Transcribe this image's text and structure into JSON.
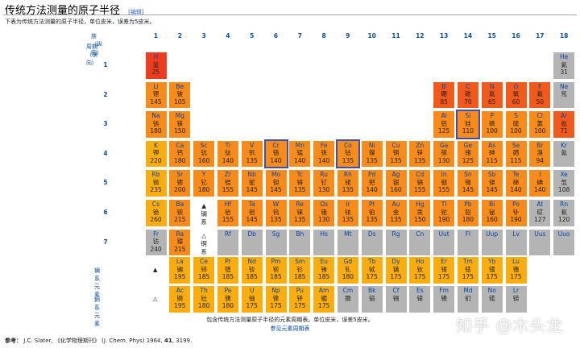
{
  "header": {
    "title": "传统方法测量的原子半径",
    "edit_link": "[编辑]",
    "intro": "下表为传统方法测量的原子半径，单位皮米，误差为5皮米。"
  },
  "axes": {
    "group_label": "族（纵向）",
    "period_label": "周期（横向）",
    "groups": [
      "1",
      "2",
      "3",
      "4",
      "5",
      "6",
      "7",
      "8",
      "9",
      "10",
      "11",
      "12",
      "13",
      "14",
      "15",
      "16",
      "17",
      "18"
    ],
    "periods": [
      "1",
      "2",
      "3",
      "4",
      "5",
      "6",
      "7"
    ],
    "lanthanide_label": "镧系元素",
    "actinide_label": "锕系元素",
    "lanthanide_marker": "▲",
    "actinide_marker": "△"
  },
  "colors": {
    "red": "#f03c1e",
    "red_orange": "#f2591c",
    "orange": "#f98b1a",
    "gold": "#fbad0e",
    "grey": "#b4b4b4",
    "highlight": "#3b4fb8"
  },
  "placeholders": [
    {
      "g": 3,
      "p": 6,
      "t1": "▲",
      "t2": "镧",
      "t3": "系"
    },
    {
      "g": 3,
      "p": 7,
      "t1": "△",
      "t2": "锕",
      "t3": "系"
    }
  ],
  "elements": [
    {
      "s": "H",
      "zh": "氢",
      "r": "25",
      "c": "red",
      "g": 1,
      "p": 1
    },
    {
      "s": "He",
      "zh": "氦",
      "r": "31",
      "c": "grey",
      "g": 18,
      "p": 1
    },
    {
      "s": "Li",
      "zh": "锂",
      "r": "145",
      "c": "orange",
      "g": 1,
      "p": 2
    },
    {
      "s": "Be",
      "zh": "铍",
      "r": "105",
      "c": "orange",
      "g": 2,
      "p": 2
    },
    {
      "s": "B",
      "zh": "硼",
      "r": "85",
      "c": "red_orange",
      "g": 13,
      "p": 2
    },
    {
      "s": "C",
      "zh": "碳",
      "r": "70",
      "c": "red_orange",
      "g": 14,
      "p": 2
    },
    {
      "s": "N",
      "zh": "氮",
      "r": "65",
      "c": "red_orange",
      "g": 15,
      "p": 2
    },
    {
      "s": "O",
      "zh": "氧",
      "r": "60",
      "c": "red_orange",
      "g": 16,
      "p": 2
    },
    {
      "s": "F",
      "zh": "氟",
      "r": "50",
      "c": "red_orange",
      "g": 17,
      "p": 2
    },
    {
      "s": "Ne",
      "zh": "氖",
      "r": "",
      "c": "grey",
      "g": 18,
      "p": 2
    },
    {
      "s": "Na",
      "zh": "钠",
      "r": "180",
      "c": "orange",
      "g": 1,
      "p": 3
    },
    {
      "s": "Mg",
      "zh": "镁",
      "r": "150",
      "c": "orange",
      "g": 2,
      "p": 3
    },
    {
      "s": "Al",
      "zh": "铝",
      "r": "125",
      "c": "orange",
      "g": 13,
      "p": 3
    },
    {
      "s": "Si",
      "zh": "硅",
      "r": "110",
      "c": "orange",
      "g": 14,
      "p": 3,
      "hl": true
    },
    {
      "s": "P",
      "zh": "磷",
      "r": "100",
      "c": "orange",
      "g": 15,
      "p": 3
    },
    {
      "s": "S",
      "zh": "硫",
      "r": "100",
      "c": "orange",
      "g": 16,
      "p": 3
    },
    {
      "s": "Cl",
      "zh": "氯",
      "r": "100",
      "c": "orange",
      "g": 17,
      "p": 3
    },
    {
      "s": "Ar",
      "zh": "氩",
      "r": "71",
      "c": "red_orange",
      "g": 18,
      "p": 3
    },
    {
      "s": "K",
      "zh": "钾",
      "r": "220",
      "c": "gold",
      "g": 1,
      "p": 4
    },
    {
      "s": "Ca",
      "zh": "钙",
      "r": "180",
      "c": "orange",
      "g": 2,
      "p": 4
    },
    {
      "s": "Sc",
      "zh": "钪",
      "r": "160",
      "c": "orange",
      "g": 3,
      "p": 4
    },
    {
      "s": "Ti",
      "zh": "钛",
      "r": "140",
      "c": "orange",
      "g": 4,
      "p": 4
    },
    {
      "s": "V",
      "zh": "钒",
      "r": "135",
      "c": "orange",
      "g": 5,
      "p": 4
    },
    {
      "s": "Cr",
      "zh": "铬",
      "r": "140",
      "c": "orange",
      "g": 6,
      "p": 4,
      "hl": true
    },
    {
      "s": "Mn",
      "zh": "锰",
      "r": "140",
      "c": "orange",
      "g": 7,
      "p": 4
    },
    {
      "s": "Fe",
      "zh": "铁",
      "r": "140",
      "c": "orange",
      "g": 8,
      "p": 4
    },
    {
      "s": "Co",
      "zh": "钴",
      "r": "135",
      "c": "orange",
      "g": 9,
      "p": 4,
      "hl": true
    },
    {
      "s": "Ni",
      "zh": "镍",
      "r": "135",
      "c": "orange",
      "g": 10,
      "p": 4
    },
    {
      "s": "Cu",
      "zh": "铜",
      "r": "135",
      "c": "orange",
      "g": 11,
      "p": 4
    },
    {
      "s": "Zn",
      "zh": "锌",
      "r": "135",
      "c": "orange",
      "g": 12,
      "p": 4
    },
    {
      "s": "Ga",
      "zh": "镓",
      "r": "130",
      "c": "orange",
      "g": 13,
      "p": 4
    },
    {
      "s": "Ge",
      "zh": "锗",
      "r": "125",
      "c": "orange",
      "g": 14,
      "p": 4
    },
    {
      "s": "As",
      "zh": "砷",
      "r": "115",
      "c": "orange",
      "g": 15,
      "p": 4
    },
    {
      "s": "Se",
      "zh": "硒",
      "r": "115",
      "c": "orange",
      "g": 16,
      "p": 4
    },
    {
      "s": "Br",
      "zh": "溴",
      "r": "94",
      "c": "orange",
      "g": 17,
      "p": 4
    },
    {
      "s": "Kr",
      "zh": "氪",
      "r": "",
      "c": "grey",
      "g": 18,
      "p": 4
    },
    {
      "s": "Rb",
      "zh": "铷",
      "r": "235",
      "c": "gold",
      "g": 1,
      "p": 5
    },
    {
      "s": "Sr",
      "zh": "锶",
      "r": "200",
      "c": "orange",
      "g": 2,
      "p": 5
    },
    {
      "s": "Y",
      "zh": "钇",
      "r": "180",
      "c": "orange",
      "g": 3,
      "p": 5
    },
    {
      "s": "Zr",
      "zh": "锆",
      "r": "155",
      "c": "orange",
      "g": 4,
      "p": 5
    },
    {
      "s": "Nb",
      "zh": "铌",
      "r": "145",
      "c": "orange",
      "g": 5,
      "p": 5
    },
    {
      "s": "Mo",
      "zh": "钼",
      "r": "145",
      "c": "orange",
      "g": 6,
      "p": 5
    },
    {
      "s": "Tc",
      "zh": "锝",
      "r": "135",
      "c": "orange",
      "g": 7,
      "p": 5
    },
    {
      "s": "Ru",
      "zh": "钌",
      "r": "130",
      "c": "orange",
      "g": 8,
      "p": 5
    },
    {
      "s": "Rh",
      "zh": "铑",
      "r": "135",
      "c": "orange",
      "g": 9,
      "p": 5
    },
    {
      "s": "Pd",
      "zh": "钯",
      "r": "140",
      "c": "orange",
      "g": 10,
      "p": 5
    },
    {
      "s": "Ag",
      "zh": "银",
      "r": "160",
      "c": "orange",
      "g": 11,
      "p": 5
    },
    {
      "s": "Cd",
      "zh": "镉",
      "r": "155",
      "c": "orange",
      "g": 12,
      "p": 5
    },
    {
      "s": "In",
      "zh": "铟",
      "r": "155",
      "c": "orange",
      "g": 13,
      "p": 5
    },
    {
      "s": "Sn",
      "zh": "锡",
      "r": "145",
      "c": "orange",
      "g": 14,
      "p": 5
    },
    {
      "s": "Sb",
      "zh": "锑",
      "r": "145",
      "c": "orange",
      "g": 15,
      "p": 5
    },
    {
      "s": "Te",
      "zh": "碲",
      "r": "140",
      "c": "orange",
      "g": 16,
      "p": 5
    },
    {
      "s": "I",
      "zh": "碘",
      "r": "140",
      "c": "orange",
      "g": 17,
      "p": 5
    },
    {
      "s": "Xe",
      "zh": "氙",
      "r": "108",
      "c": "grey",
      "g": 18,
      "p": 5
    },
    {
      "s": "Cs",
      "zh": "铯",
      "r": "260",
      "c": "gold",
      "g": 1,
      "p": 6
    },
    {
      "s": "Ba",
      "zh": "钡",
      "r": "215",
      "c": "orange",
      "g": 2,
      "p": 6
    },
    {
      "s": "Hf",
      "zh": "铪",
      "r": "155",
      "c": "orange",
      "g": 4,
      "p": 6
    },
    {
      "s": "Ta",
      "zh": "钽",
      "r": "145",
      "c": "orange",
      "g": 5,
      "p": 6
    },
    {
      "s": "W",
      "zh": "钨",
      "r": "135",
      "c": "orange",
      "g": 6,
      "p": 6
    },
    {
      "s": "Re",
      "zh": "铼",
      "r": "135",
      "c": "orange",
      "g": 7,
      "p": 6
    },
    {
      "s": "Os",
      "zh": "锇",
      "r": "130",
      "c": "orange",
      "g": 8,
      "p": 6
    },
    {
      "s": "Ir",
      "zh": "铱",
      "r": "135",
      "c": "orange",
      "g": 9,
      "p": 6
    },
    {
      "s": "Pt",
      "zh": "铂",
      "r": "135",
      "c": "orange",
      "g": 10,
      "p": 6
    },
    {
      "s": "Au",
      "zh": "金",
      "r": "135",
      "c": "orange",
      "g": 11,
      "p": 6
    },
    {
      "s": "Hg",
      "zh": "汞",
      "r": "150",
      "c": "orange",
      "g": 12,
      "p": 6
    },
    {
      "s": "Tl",
      "zh": "铊",
      "r": "190",
      "c": "orange",
      "g": 13,
      "p": 6
    },
    {
      "s": "Pb",
      "zh": "铅",
      "r": "180",
      "c": "orange",
      "g": 14,
      "p": 6
    },
    {
      "s": "Bi",
      "zh": "铋",
      "r": "160",
      "c": "orange",
      "g": 15,
      "p": 6
    },
    {
      "s": "Po",
      "zh": "钋",
      "r": "190",
      "c": "orange",
      "g": 16,
      "p": 6
    },
    {
      "s": "At",
      "zh": "砹",
      "r": "127",
      "c": "grey",
      "g": 17,
      "p": 6
    },
    {
      "s": "Rn",
      "zh": "氡",
      "r": "120",
      "c": "grey",
      "g": 18,
      "p": 6
    },
    {
      "s": "Fr",
      "zh": "钫",
      "r": "240",
      "c": "grey",
      "g": 1,
      "p": 7
    },
    {
      "s": "Ra",
      "zh": "镭",
      "r": "215",
      "c": "orange",
      "g": 2,
      "p": 7
    },
    {
      "s": "Rf",
      "zh": "",
      "r": "",
      "c": "grey",
      "g": 4,
      "p": 7
    },
    {
      "s": "Db",
      "zh": "",
      "r": "",
      "c": "grey",
      "g": 5,
      "p": 7
    },
    {
      "s": "Sg",
      "zh": "",
      "r": "",
      "c": "grey",
      "g": 6,
      "p": 7
    },
    {
      "s": "Bh",
      "zh": "",
      "r": "",
      "c": "grey",
      "g": 7,
      "p": 7
    },
    {
      "s": "Hs",
      "zh": "",
      "r": "",
      "c": "grey",
      "g": 8,
      "p": 7
    },
    {
      "s": "Mt",
      "zh": "",
      "r": "",
      "c": "grey",
      "g": 9,
      "p": 7
    },
    {
      "s": "Ds",
      "zh": "",
      "r": "",
      "c": "grey",
      "g": 10,
      "p": 7
    },
    {
      "s": "Rg",
      "zh": "",
      "r": "",
      "c": "grey",
      "g": 11,
      "p": 7
    },
    {
      "s": "Cn",
      "zh": "",
      "r": "",
      "c": "grey",
      "g": 12,
      "p": 7
    },
    {
      "s": "Uut",
      "zh": "",
      "r": "",
      "c": "grey",
      "g": 13,
      "p": 7
    },
    {
      "s": "Fl",
      "zh": "",
      "r": "",
      "c": "grey",
      "g": 14,
      "p": 7
    },
    {
      "s": "Uup",
      "zh": "",
      "r": "",
      "c": "grey",
      "g": 15,
      "p": 7
    },
    {
      "s": "Lv",
      "zh": "",
      "r": "",
      "c": "grey",
      "g": 16,
      "p": 7
    },
    {
      "s": "Uus",
      "zh": "",
      "r": "",
      "c": "grey",
      "g": 17,
      "p": 7
    },
    {
      "s": "Uuo",
      "zh": "",
      "r": "",
      "c": "grey",
      "g": 18,
      "p": 7
    }
  ],
  "lanthanides": [
    {
      "s": "La",
      "zh": "镧",
      "r": "195",
      "c": "gold"
    },
    {
      "s": "Ce",
      "zh": "铈",
      "r": "185",
      "c": "gold"
    },
    {
      "s": "Pr",
      "zh": "镨",
      "r": "185",
      "c": "gold"
    },
    {
      "s": "Nd",
      "zh": "钕",
      "r": "185",
      "c": "gold"
    },
    {
      "s": "Pm",
      "zh": "钷",
      "r": "185",
      "c": "gold"
    },
    {
      "s": "Sm",
      "zh": "钐",
      "r": "185",
      "c": "gold"
    },
    {
      "s": "Eu",
      "zh": "铕",
      "r": "185",
      "c": "gold"
    },
    {
      "s": "Gd",
      "zh": "钆",
      "r": "180",
      "c": "gold"
    },
    {
      "s": "Tb",
      "zh": "铽",
      "r": "175",
      "c": "gold"
    },
    {
      "s": "Dy",
      "zh": "镝",
      "r": "175",
      "c": "gold"
    },
    {
      "s": "Ho",
      "zh": "钬",
      "r": "175",
      "c": "gold"
    },
    {
      "s": "Er",
      "zh": "铒",
      "r": "175",
      "c": "gold"
    },
    {
      "s": "Tm",
      "zh": "铥",
      "r": "175",
      "c": "gold"
    },
    {
      "s": "Yb",
      "zh": "镱",
      "r": "175",
      "c": "gold"
    },
    {
      "s": "Lu",
      "zh": "镥",
      "r": "175",
      "c": "gold"
    }
  ],
  "actinides": [
    {
      "s": "Ac",
      "zh": "锕",
      "r": "195",
      "c": "gold"
    },
    {
      "s": "Th",
      "zh": "钍",
      "r": "180",
      "c": "gold"
    },
    {
      "s": "Pa",
      "zh": "镤",
      "r": "180",
      "c": "gold"
    },
    {
      "s": "U",
      "zh": "铀",
      "r": "175",
      "c": "gold"
    },
    {
      "s": "Np",
      "zh": "镎",
      "r": "175",
      "c": "gold"
    },
    {
      "s": "Pu",
      "zh": "钚",
      "r": "175",
      "c": "gold"
    },
    {
      "s": "Am",
      "zh": "镅",
      "r": "175",
      "c": "gold"
    },
    {
      "s": "Cm",
      "zh": "锔",
      "r": "",
      "c": "grey"
    },
    {
      "s": "Bk",
      "zh": "锫",
      "r": "",
      "c": "grey"
    },
    {
      "s": "Cf",
      "zh": "锎",
      "r": "",
      "c": "grey"
    },
    {
      "s": "Es",
      "zh": "锿",
      "r": "",
      "c": "grey"
    },
    {
      "s": "Fm",
      "zh": "镄",
      "r": "",
      "c": "grey"
    },
    {
      "s": "Md",
      "zh": "钔",
      "r": "",
      "c": "grey"
    },
    {
      "s": "No",
      "zh": "锘",
      "r": "",
      "c": "grey"
    },
    {
      "s": "Lr",
      "zh": "铹",
      "r": "",
      "c": "grey"
    }
  ],
  "caption": {
    "line1": "包含传统方法测量原子半径的元素周期表。单位皮米，误差5皮米。",
    "line2": "参见元素周期表"
  },
  "reference": {
    "label": "参考：",
    "text_before": "J.C. Slater, 《化学物理期刊》 (J. Chem. Phys) 1964,",
    "volume": "41",
    "text_after": ", 3199."
  },
  "watermark": "知乎 @木头龙"
}
